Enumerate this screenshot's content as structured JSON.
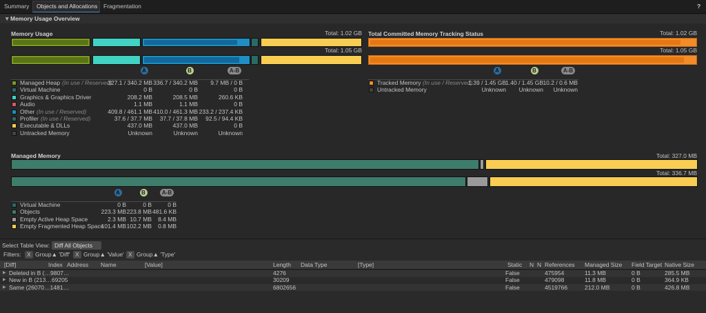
{
  "tabs": [
    "Summary",
    "Objects and Allocations",
    "Fragmentation"
  ],
  "help": "?",
  "overview": {
    "title": "Memory Usage Overview",
    "memory_usage": {
      "title": "Memory Usage",
      "total_a": "Total: 1.02 GB",
      "total_b": "Total: 1.05 GB",
      "badges": [
        "A",
        "B",
        "A-B"
      ],
      "rows": [
        {
          "name": "Managed Heap",
          "note": "(In use / Reserved)",
          "a": "327.1 / 340.2 MB",
          "b": "336.7 / 340.2 MB",
          "diff": "9.7 MB / 0 B"
        },
        {
          "name": "Virtual Machine",
          "a": "0 B",
          "b": "0 B",
          "diff": "0 B"
        },
        {
          "name": "Graphics & Graphics Driver",
          "a": "208.2 MB",
          "b": "208.5 MB",
          "diff": "260.6 KB"
        },
        {
          "name": "Audio",
          "a": "1.1 MB",
          "b": "1.1 MB",
          "diff": "0 B"
        },
        {
          "name": "Other",
          "note": "(In use / Reserved)",
          "a": "409.8 / 461.1 MB",
          "b": "410.0 / 461.3 MB",
          "diff": "233.2 / 237.4 KB"
        },
        {
          "name": "Profiler",
          "note": "(In use / Reserved)",
          "a": "37.6 / 37.7 MB",
          "b": "37.7 / 37.8 MB",
          "diff": "92.5 / 94.4 KB"
        },
        {
          "name": "Executable & DLLs",
          "a": "437.0 MB",
          "b": "437.0 MB",
          "diff": "0 B"
        },
        {
          "name": "Untracked Memory",
          "a": "Unknown",
          "b": "Unknown",
          "diff": "Unknown"
        }
      ]
    },
    "tracking": {
      "title": "Total Committed Memory Tracking Status",
      "total_a": "Total: 1.02 GB",
      "total_b": "Total: 1.05 GB",
      "badges": [
        "A",
        "B",
        "A-B"
      ],
      "rows": [
        {
          "name": "Tracked Memory",
          "note": "(In use / Reserved)",
          "a": "1.39 / 1.45 GB",
          "b": "1.40 / 1.45 GB",
          "diff": "10.2 / 0.6 MB"
        },
        {
          "name": "Untracked Memory",
          "a": "Unknown",
          "b": "Unknown",
          "diff": "Unknown"
        }
      ]
    },
    "managed": {
      "title": "Managed Memory",
      "total_a": "Total: 327.0 MB",
      "total_b": "Total: 336.7 MB",
      "badges": [
        "A",
        "B",
        "A-B"
      ],
      "rows": [
        {
          "name": "Virtual Machine",
          "a": "0 B",
          "b": "0 B",
          "diff": "0 B"
        },
        {
          "name": "Objects",
          "a": "223.3 MB",
          "b": "223.8 MB",
          "diff": "481.6 KB"
        },
        {
          "name": "Empty Active Heap Space",
          "a": "2.3 MB",
          "b": "10.7 MB",
          "diff": "8.4 MB"
        },
        {
          "name": "Empty Fragmented Heap Space",
          "a": "101.4 MB",
          "b": "102.2 MB",
          "diff": "0.8 MB"
        }
      ]
    }
  },
  "table_view": {
    "label": "Select Table View:",
    "selected": "Diff All Objects"
  },
  "filters": {
    "label": "Filters:",
    "items": [
      {
        "remove": "X",
        "text": "Group▲ 'Diff'"
      },
      {
        "remove": "X",
        "text": "Group▲ 'Value'"
      },
      {
        "remove": "X",
        "text": "Group▲ 'Type'"
      }
    ]
  },
  "table": {
    "columns": [
      "[Diff]",
      "Index",
      "Address",
      "Name",
      "[Value]",
      "Length",
      "Data Type",
      "[Type]",
      "Static",
      "N",
      "N",
      "References",
      "Managed Size",
      "Field Target",
      "Native Size"
    ],
    "rows": [
      {
        "diff": "Deleted in B (…9807…",
        "length": "4276",
        "static": "False",
        "references": "475954",
        "managed_size": "11.3 MB",
        "field_target": "0 B",
        "native_size": "285.5 MB"
      },
      {
        "diff": "New in B (213…69205",
        "length": "30209",
        "static": "False",
        "references": "479098",
        "managed_size": "11.8 MB",
        "field_target": "0 B",
        "native_size": "364.9 KB"
      },
      {
        "diff": "Same (26070…1481…",
        "length": "6802656",
        "static": "False",
        "references": "4519766",
        "managed_size": "212.0 MB",
        "field_target": "0 B",
        "native_size": "426.8 MB"
      }
    ]
  }
}
